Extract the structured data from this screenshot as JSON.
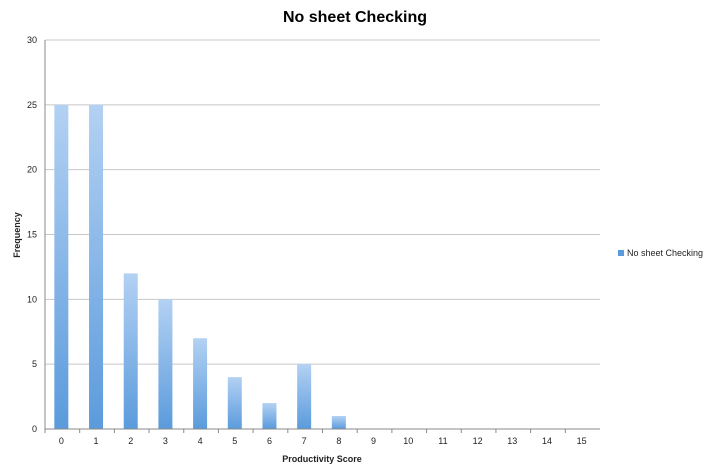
{
  "chart_data": {
    "type": "bar",
    "title": "No sheet Checking",
    "xlabel": "Productivity Score",
    "ylabel": "Frequency",
    "categories": [
      "0",
      "1",
      "2",
      "3",
      "4",
      "5",
      "6",
      "7",
      "8",
      "9",
      "10",
      "11",
      "12",
      "13",
      "14",
      "15"
    ],
    "series": [
      {
        "name": "No sheet Checking",
        "values": [
          25,
          25,
          12,
          10,
          7,
          4,
          2,
          5,
          1,
          0,
          0,
          0,
          0,
          0,
          0,
          0
        ]
      }
    ],
    "ylim": [
      0,
      30
    ],
    "yticks": [
      0,
      5,
      10,
      15,
      20,
      25,
      30
    ],
    "grid": true,
    "legend_position": "right",
    "colors": {
      "bar_top": "#b3d1f3",
      "bar_bottom": "#5b9bdc",
      "grid": "#c8c8c8",
      "axis": "#8a8a8a"
    }
  }
}
